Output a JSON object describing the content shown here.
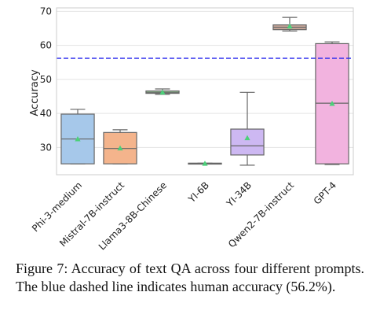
{
  "chart_data": {
    "type": "box",
    "ylabel": "Accuracy",
    "ylim": [
      22,
      71
    ],
    "yticks": [
      30,
      40,
      50,
      60,
      70
    ],
    "categories": [
      "Phi-3-medium",
      "Mistral-7B-instruct",
      "Llama3-8B-Chinese",
      "YI-6B",
      "YI-34B",
      "Qwen2-7B-instruct",
      "GPT-4"
    ],
    "boxes": [
      {
        "whisker_low": 25.2,
        "q1": 25.2,
        "median": 32.5,
        "q3": 39.8,
        "whisker_high": 41.2,
        "mean": 32.5,
        "color": "#a6c8ea"
      },
      {
        "whisker_low": 25.2,
        "q1": 25.2,
        "median": 29.7,
        "q3": 34.4,
        "whisker_high": 35.2,
        "mean": 29.8,
        "color": "#f4b48c"
      },
      {
        "whisker_low": 45.6,
        "q1": 45.9,
        "median": 46.2,
        "q3": 46.6,
        "whisker_high": 47.2,
        "mean": 46.2,
        "color": "#9cd49c"
      },
      {
        "whisker_low": 25.2,
        "q1": 25.2,
        "median": 25.3,
        "q3": 25.4,
        "whisker_high": 25.4,
        "mean": 25.3,
        "color": "#f09a9a"
      },
      {
        "whisker_low": 24.8,
        "q1": 27.8,
        "median": 30.5,
        "q3": 35.4,
        "whisker_high": 46.2,
        "mean": 32.8,
        "color": "#cdb8f2"
      },
      {
        "whisker_low": 64.2,
        "q1": 64.6,
        "median": 65.3,
        "q3": 66.0,
        "whisker_high": 68.2,
        "mean": 65.6,
        "color": "#c9a89a"
      },
      {
        "whisker_low": 25.0,
        "q1": 25.2,
        "median": 43.0,
        "q3": 60.5,
        "whisker_high": 61.0,
        "mean": 42.9,
        "color": "#f2b3df"
      }
    ],
    "reference_line": {
      "value": 56.2,
      "color": "#2a2aee",
      "style": "dashed"
    },
    "mean_marker_color": "#4cd07a",
    "grid": true,
    "box_edge_color": "#666666"
  },
  "caption": "Figure 7: Accuracy of text QA across four different prompts. The blue dashed line indicates human accuracy (56.2%)."
}
